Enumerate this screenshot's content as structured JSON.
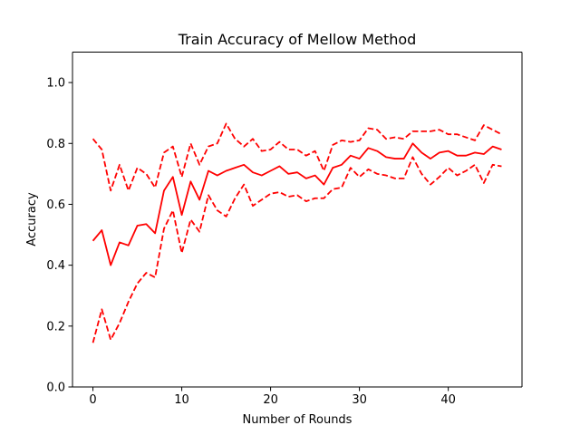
{
  "chart_data": {
    "type": "line",
    "title": "Train Accuracy of Mellow Method",
    "xlabel": "Number of Rounds",
    "ylabel": "Accuracy",
    "xlim": [
      -2.3,
      48.3
    ],
    "ylim": [
      0.0,
      1.1
    ],
    "xticks": [
      0,
      10,
      20,
      30,
      40
    ],
    "yticks": [
      0.0,
      0.2,
      0.4,
      0.6,
      0.8,
      1.0
    ],
    "grid": false,
    "legend": "none",
    "color": "#ff0000",
    "x": [
      0,
      1,
      2,
      3,
      4,
      5,
      6,
      7,
      8,
      9,
      10,
      11,
      12,
      13,
      14,
      15,
      16,
      17,
      18,
      19,
      20,
      21,
      22,
      23,
      24,
      25,
      26,
      27,
      28,
      29,
      30,
      31,
      32,
      33,
      34,
      35,
      36,
      37,
      38,
      39,
      40,
      41,
      42,
      43,
      44,
      45,
      46
    ],
    "series": [
      {
        "style": "solid",
        "values": [
          0.48,
          0.515,
          0.4,
          0.475,
          0.465,
          0.53,
          0.535,
          0.505,
          0.645,
          0.69,
          0.565,
          0.675,
          0.615,
          0.71,
          0.695,
          0.71,
          0.72,
          0.73,
          0.705,
          0.695,
          0.71,
          0.725,
          0.7,
          0.705,
          0.685,
          0.695,
          0.665,
          0.72,
          0.73,
          0.76,
          0.75,
          0.785,
          0.775,
          0.755,
          0.75,
          0.75,
          0.8,
          0.77,
          0.75,
          0.77,
          0.775,
          0.76,
          0.76,
          0.77,
          0.765,
          0.79,
          0.78
        ]
      },
      {
        "style": "dashed",
        "values": [
          0.815,
          0.78,
          0.645,
          0.73,
          0.645,
          0.72,
          0.7,
          0.655,
          0.77,
          0.79,
          0.69,
          0.8,
          0.73,
          0.79,
          0.8,
          0.865,
          0.815,
          0.79,
          0.815,
          0.775,
          0.78,
          0.805,
          0.78,
          0.78,
          0.76,
          0.775,
          0.71,
          0.795,
          0.81,
          0.805,
          0.81,
          0.85,
          0.845,
          0.815,
          0.82,
          0.815,
          0.84,
          0.84,
          0.84,
          0.845,
          0.83,
          0.83,
          0.82,
          0.81,
          0.86,
          0.845,
          0.83
        ]
      },
      {
        "style": "dashed",
        "values": [
          0.145,
          0.255,
          0.155,
          0.21,
          0.28,
          0.34,
          0.375,
          0.36,
          0.52,
          0.58,
          0.44,
          0.55,
          0.51,
          0.63,
          0.58,
          0.56,
          0.62,
          0.665,
          0.595,
          0.615,
          0.635,
          0.64,
          0.625,
          0.63,
          0.61,
          0.62,
          0.62,
          0.65,
          0.655,
          0.72,
          0.69,
          0.715,
          0.7,
          0.695,
          0.685,
          0.685,
          0.755,
          0.7,
          0.665,
          0.69,
          0.72,
          0.695,
          0.71,
          0.73,
          0.67,
          0.73,
          0.725
        ]
      }
    ]
  }
}
